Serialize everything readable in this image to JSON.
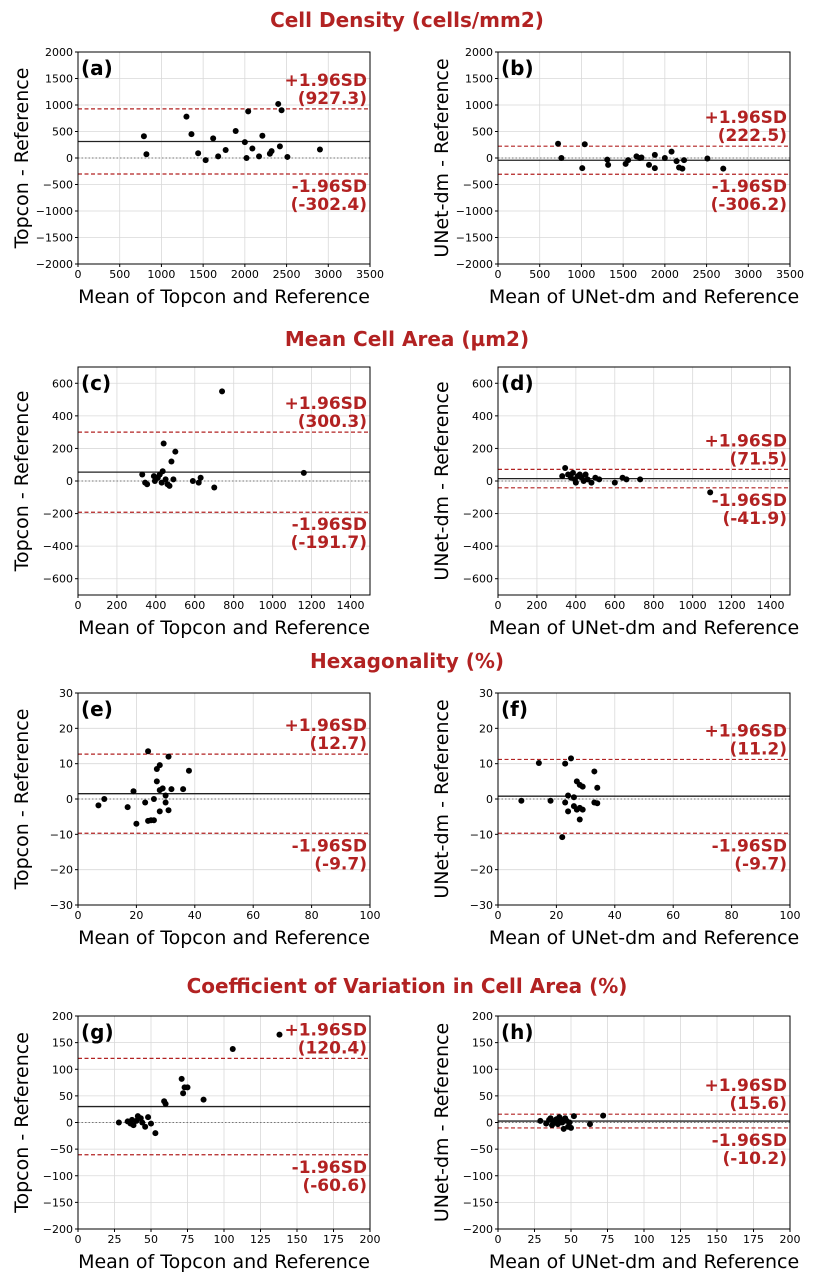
{
  "sections": [
    {
      "title": "Cell Density (cells/mm2)"
    },
    {
      "title": "Mean Cell Area (µm2)"
    },
    {
      "title": "Hexagonality (%)"
    },
    {
      "title": "Coefficient of Variation in Cell Area (%)"
    }
  ],
  "colors": {
    "accent": "#b22222",
    "points": "#000000",
    "grid": "#d9d9d9"
  },
  "chart_data": [
    {
      "type": "scatter",
      "panel": "(a)",
      "xlabel": "Mean of Topcon and Reference",
      "ylabel": "Topcon - Reference",
      "xlim": [
        0,
        3500
      ],
      "ylim": [
        -2000,
        2000
      ],
      "xticks": [
        0,
        500,
        1000,
        1500,
        2000,
        2500,
        3000,
        3500
      ],
      "yticks": [
        -2000,
        -1500,
        -1000,
        -500,
        0,
        500,
        1000,
        1500,
        2000
      ],
      "mean_bias": 312,
      "upper_loa": 927.3,
      "lower_loa": -302.4,
      "upper_label": "+1.96SD",
      "upper_value": "(927.3)",
      "lower_label": "-1.96SD",
      "lower_value": "(-302.4)",
      "grid": true,
      "points": [
        [
          790,
          410
        ],
        [
          820,
          70
        ],
        [
          1300,
          780
        ],
        [
          1360,
          450
        ],
        [
          1440,
          90
        ],
        [
          1530,
          -40
        ],
        [
          1620,
          370
        ],
        [
          1680,
          30
        ],
        [
          1770,
          150
        ],
        [
          1890,
          510
        ],
        [
          2000,
          300
        ],
        [
          2020,
          0
        ],
        [
          2040,
          880
        ],
        [
          2090,
          180
        ],
        [
          2170,
          30
        ],
        [
          2210,
          420
        ],
        [
          2300,
          80
        ],
        [
          2320,
          130
        ],
        [
          2400,
          1020
        ],
        [
          2420,
          220
        ],
        [
          2440,
          900
        ],
        [
          2510,
          20
        ],
        [
          2900,
          160
        ]
      ]
    },
    {
      "type": "scatter",
      "panel": "(b)",
      "xlabel": "Mean of UNet-dm and Reference",
      "ylabel": "UNet-dm - Reference",
      "xlim": [
        0,
        3500
      ],
      "ylim": [
        -2000,
        2000
      ],
      "xticks": [
        0,
        500,
        1000,
        1500,
        2000,
        2500,
        3000,
        3500
      ],
      "yticks": [
        -2000,
        -1500,
        -1000,
        -500,
        0,
        500,
        1000,
        1500,
        2000
      ],
      "mean_bias": -42,
      "upper_loa": 222.5,
      "lower_loa": -306.2,
      "upper_label": "+1.96SD",
      "upper_value": "(222.5)",
      "lower_label": "-1.96SD",
      "lower_value": "(-306.2)",
      "grid": true,
      "points": [
        [
          720,
          270
        ],
        [
          760,
          0
        ],
        [
          1010,
          -190
        ],
        [
          1040,
          260
        ],
        [
          1310,
          -30
        ],
        [
          1320,
          -130
        ],
        [
          1530,
          -110
        ],
        [
          1560,
          -40
        ],
        [
          1660,
          30
        ],
        [
          1700,
          0
        ],
        [
          1720,
          10
        ],
        [
          1810,
          -130
        ],
        [
          1880,
          -190
        ],
        [
          1880,
          60
        ],
        [
          2000,
          0
        ],
        [
          2080,
          120
        ],
        [
          2140,
          -60
        ],
        [
          2170,
          -180
        ],
        [
          2210,
          -200
        ],
        [
          2230,
          -40
        ],
        [
          2510,
          -10
        ],
        [
          2700,
          -200
        ]
      ]
    },
    {
      "type": "scatter",
      "panel": "(c)",
      "xlabel": "Mean of Topcon and Reference",
      "ylabel": "Topcon - Reference",
      "xlim": [
        0,
        1500
      ],
      "ylim": [
        -700,
        700
      ],
      "xticks": [
        0,
        200,
        400,
        600,
        800,
        1000,
        1200,
        1400
      ],
      "yticks": [
        -600,
        -400,
        -200,
        0,
        200,
        400,
        600
      ],
      "mean_bias": 54.3,
      "upper_loa": 300.3,
      "lower_loa": -191.7,
      "upper_label": "+1.96SD",
      "upper_value": "(300.3)",
      "lower_label": "-1.96SD",
      "lower_value": "(-191.7)",
      "grid": true,
      "points": [
        [
          330,
          40
        ],
        [
          345,
          -10
        ],
        [
          355,
          -20
        ],
        [
          390,
          30
        ],
        [
          395,
          0
        ],
        [
          410,
          20
        ],
        [
          420,
          40
        ],
        [
          430,
          -10
        ],
        [
          435,
          60
        ],
        [
          440,
          230
        ],
        [
          450,
          10
        ],
        [
          460,
          -20
        ],
        [
          470,
          -30
        ],
        [
          480,
          120
        ],
        [
          490,
          10
        ],
        [
          500,
          180
        ],
        [
          590,
          0
        ],
        [
          620,
          -10
        ],
        [
          630,
          20
        ],
        [
          700,
          -40
        ],
        [
          740,
          550
        ],
        [
          1160,
          50
        ]
      ]
    },
    {
      "type": "scatter",
      "panel": "(d)",
      "xlabel": "Mean of UNet-dm and Reference",
      "ylabel": "UNet-dm - Reference",
      "xlim": [
        0,
        1500
      ],
      "ylim": [
        -700,
        700
      ],
      "xticks": [
        0,
        200,
        400,
        600,
        800,
        1000,
        1200,
        1400
      ],
      "yticks": [
        -600,
        -400,
        -200,
        0,
        200,
        400,
        600
      ],
      "mean_bias": 14.8,
      "upper_loa": 71.5,
      "lower_loa": -41.9,
      "upper_label": "+1.96SD",
      "upper_value": "(71.5)",
      "lower_label": "-1.96SD",
      "lower_value": "(-41.9)",
      "grid": true,
      "points": [
        [
          330,
          30
        ],
        [
          345,
          80
        ],
        [
          360,
          40
        ],
        [
          375,
          20
        ],
        [
          385,
          50
        ],
        [
          395,
          10
        ],
        [
          400,
          -10
        ],
        [
          410,
          30
        ],
        [
          420,
          40
        ],
        [
          430,
          20
        ],
        [
          440,
          0
        ],
        [
          450,
          40
        ],
        [
          460,
          10
        ],
        [
          480,
          -10
        ],
        [
          500,
          20
        ],
        [
          520,
          10
        ],
        [
          600,
          -10
        ],
        [
          640,
          20
        ],
        [
          660,
          10
        ],
        [
          730,
          10
        ],
        [
          1090,
          -70
        ]
      ]
    },
    {
      "type": "scatter",
      "panel": "(e)",
      "xlabel": "Mean of Topcon and Reference",
      "ylabel": "Topcon - Reference",
      "xlim": [
        0,
        100
      ],
      "ylim": [
        -30,
        30
      ],
      "xticks": [
        0,
        20,
        40,
        60,
        80,
        100
      ],
      "yticks": [
        -30,
        -20,
        -10,
        0,
        10,
        20,
        30
      ],
      "mean_bias": 1.5,
      "upper_loa": 12.7,
      "lower_loa": -9.7,
      "upper_label": "+1.96SD",
      "upper_value": "(12.7)",
      "lower_label": "-1.96SD",
      "lower_value": "(-9.7)",
      "grid": true,
      "points": [
        [
          7,
          -1.8
        ],
        [
          9,
          0
        ],
        [
          17,
          -2.3
        ],
        [
          19,
          2.2
        ],
        [
          20,
          -7
        ],
        [
          23,
          -1
        ],
        [
          24,
          13.5
        ],
        [
          24,
          -6.2
        ],
        [
          25,
          -6
        ],
        [
          26,
          0
        ],
        [
          26,
          -6
        ],
        [
          27,
          8.5
        ],
        [
          27,
          5
        ],
        [
          28,
          -3.5
        ],
        [
          28,
          2.5
        ],
        [
          28,
          9.6
        ],
        [
          29,
          3
        ],
        [
          30,
          -1
        ],
        [
          30,
          1
        ],
        [
          31,
          12
        ],
        [
          31,
          -3.2
        ],
        [
          32,
          2.8
        ],
        [
          36,
          2.8
        ],
        [
          38,
          8
        ]
      ]
    },
    {
      "type": "scatter",
      "panel": "(f)",
      "xlabel": "Mean of UNet-dm and Reference",
      "ylabel": "UNet-dm - Reference",
      "xlim": [
        0,
        100
      ],
      "ylim": [
        -30,
        30
      ],
      "xticks": [
        0,
        20,
        40,
        60,
        80,
        100
      ],
      "yticks": [
        -30,
        -20,
        -10,
        0,
        10,
        20,
        30
      ],
      "mean_bias": 0.8,
      "upper_loa": 11.2,
      "lower_loa": -9.7,
      "upper_label": "+1.96SD",
      "upper_value": "(11.2)",
      "lower_label": "-1.96SD",
      "lower_value": "(-9.7)",
      "grid": true,
      "points": [
        [
          8,
          -0.5
        ],
        [
          14,
          10.2
        ],
        [
          18,
          -0.5
        ],
        [
          22,
          -10.8
        ],
        [
          23,
          10
        ],
        [
          23,
          -1
        ],
        [
          24,
          1
        ],
        [
          24,
          -3.5
        ],
        [
          25,
          11.5
        ],
        [
          26,
          -2
        ],
        [
          26,
          0.5
        ],
        [
          27,
          5
        ],
        [
          27,
          -3
        ],
        [
          28,
          4
        ],
        [
          28,
          -2.5
        ],
        [
          28,
          -5.8
        ],
        [
          29,
          3.5
        ],
        [
          29,
          -3
        ],
        [
          33,
          7.8
        ],
        [
          33,
          -1
        ],
        [
          34,
          -1.2
        ],
        [
          34,
          3.2
        ]
      ]
    },
    {
      "type": "scatter",
      "panel": "(g)",
      "xlabel": "Mean of Topcon and Reference",
      "ylabel": "Topcon - Reference",
      "xlim": [
        0,
        200
      ],
      "ylim": [
        -200,
        200
      ],
      "xticks": [
        0,
        25,
        50,
        75,
        100,
        125,
        150,
        175,
        200
      ],
      "yticks": [
        -200,
        -150,
        -100,
        -50,
        0,
        50,
        100,
        150,
        200
      ],
      "mean_bias": 29.9,
      "upper_loa": 120.4,
      "lower_loa": -60.6,
      "upper_label": "+1.96SD",
      "upper_value": "(120.4)",
      "lower_label": "-1.96SD",
      "lower_value": "(-60.6)",
      "grid": true,
      "points": [
        [
          28,
          0
        ],
        [
          34,
          2
        ],
        [
          36,
          -2
        ],
        [
          37,
          5
        ],
        [
          38,
          -5
        ],
        [
          40,
          3
        ],
        [
          41,
          12
        ],
        [
          43,
          8
        ],
        [
          44,
          0
        ],
        [
          46,
          -8
        ],
        [
          48,
          10
        ],
        [
          50,
          -2
        ],
        [
          53,
          -20
        ],
        [
          59,
          40
        ],
        [
          60,
          35
        ],
        [
          71,
          82
        ],
        [
          72,
          55
        ],
        [
          73,
          66
        ],
        [
          75,
          66
        ],
        [
          86,
          43
        ],
        [
          106,
          138
        ],
        [
          138,
          165
        ]
      ]
    },
    {
      "type": "scatter",
      "panel": "(h)",
      "xlabel": "Mean of UNet-dm and Reference",
      "ylabel": "UNet-dm - Reference",
      "xlim": [
        0,
        200
      ],
      "ylim": [
        -200,
        200
      ],
      "xticks": [
        0,
        25,
        50,
        75,
        100,
        125,
        150,
        175,
        200
      ],
      "yticks": [
        -200,
        -150,
        -100,
        -50,
        0,
        50,
        100,
        150,
        200
      ],
      "mean_bias": 2.7,
      "upper_loa": 15.6,
      "lower_loa": -10.2,
      "upper_label": "+1.96SD",
      "upper_value": "(15.6)",
      "lower_label": "-1.96SD",
      "lower_value": "(-10.2)",
      "grid": true,
      "points": [
        [
          29,
          3
        ],
        [
          33,
          -2
        ],
        [
          35,
          5
        ],
        [
          36,
          8
        ],
        [
          37,
          -5
        ],
        [
          38,
          2
        ],
        [
          39,
          0
        ],
        [
          40,
          6
        ],
        [
          41,
          -3
        ],
        [
          42,
          10
        ],
        [
          43,
          5
        ],
        [
          44,
          0
        ],
        [
          45,
          -12
        ],
        [
          46,
          8
        ],
        [
          47,
          3
        ],
        [
          48,
          -8
        ],
        [
          49,
          0
        ],
        [
          50,
          -10
        ],
        [
          52,
          12
        ],
        [
          63,
          -3
        ],
        [
          72,
          13
        ]
      ]
    }
  ]
}
